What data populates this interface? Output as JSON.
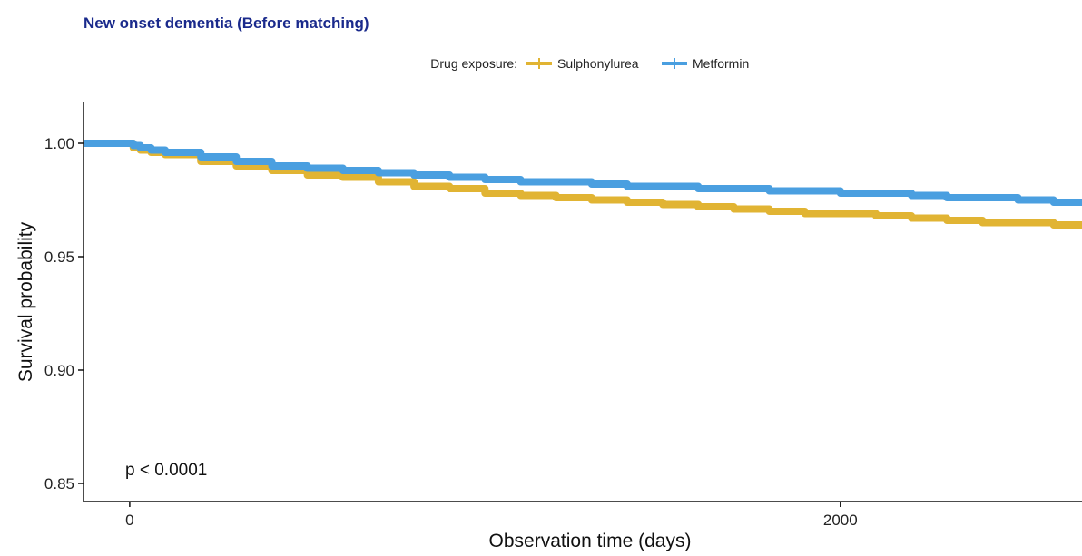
{
  "chart_data": {
    "type": "line",
    "title": "New onset dementia (Before matching)",
    "xlabel": "Observation time (days)",
    "ylabel": "Survival probability",
    "xlim": [
      -130,
      2680
    ],
    "ylim": [
      0.842,
      1.018
    ],
    "x_ticks": [
      0,
      2000
    ],
    "x_tick_labels": [
      "0",
      "2000"
    ],
    "y_ticks": [
      0.85,
      0.9,
      0.95,
      1.0
    ],
    "y_tick_labels": [
      "0.85",
      "0.90",
      "0.95",
      "1.00"
    ],
    "grid": false,
    "legend": {
      "position": "top",
      "title": "Drug exposure:"
    },
    "annotation": "p < 0.0001",
    "series": [
      {
        "name": "Sulphonylurea",
        "color": "#e1b433",
        "x": [
          -130,
          0,
          10,
          30,
          60,
          100,
          200,
          300,
          400,
          500,
          600,
          700,
          800,
          900,
          1000,
          1100,
          1200,
          1300,
          1400,
          1500,
          1600,
          1700,
          1800,
          1900,
          2000,
          2100,
          2200,
          2300,
          2400,
          2500,
          2600,
          2680
        ],
        "y": [
          1.0,
          1.0,
          0.998,
          0.997,
          0.996,
          0.995,
          0.992,
          0.99,
          0.988,
          0.986,
          0.985,
          0.983,
          0.981,
          0.98,
          0.978,
          0.977,
          0.976,
          0.975,
          0.974,
          0.973,
          0.972,
          0.971,
          0.97,
          0.969,
          0.969,
          0.968,
          0.967,
          0.966,
          0.965,
          0.965,
          0.964,
          0.963
        ]
      },
      {
        "name": "Metformin",
        "color": "#4a9fe0",
        "x": [
          -130,
          0,
          10,
          30,
          60,
          100,
          200,
          300,
          400,
          500,
          600,
          700,
          800,
          900,
          1000,
          1100,
          1200,
          1300,
          1400,
          1500,
          1600,
          1700,
          1800,
          1900,
          2000,
          2100,
          2200,
          2300,
          2400,
          2500,
          2600,
          2680
        ],
        "y": [
          1.0,
          1.0,
          0.999,
          0.998,
          0.997,
          0.996,
          0.994,
          0.992,
          0.99,
          0.989,
          0.988,
          0.987,
          0.986,
          0.985,
          0.984,
          0.983,
          0.983,
          0.982,
          0.981,
          0.981,
          0.98,
          0.98,
          0.979,
          0.979,
          0.978,
          0.978,
          0.977,
          0.976,
          0.976,
          0.975,
          0.974,
          0.973
        ]
      }
    ]
  },
  "colors": {
    "title": "#1a2a8c",
    "axis": "#111111"
  }
}
